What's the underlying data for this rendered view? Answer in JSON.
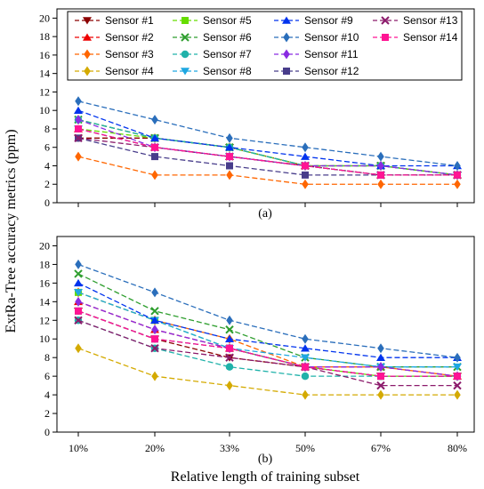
{
  "figure": {
    "ylabel": "ExtRa-Tree accuracy metrics (ppm)",
    "xlabel": "Relative length of training subset",
    "categories": [
      "10%",
      "20%",
      "33%",
      "50%",
      "67%",
      "80%"
    ]
  },
  "chart_data": [
    {
      "type": "line",
      "panel": "(a)",
      "categories": [
        "10%",
        "20%",
        "33%",
        "50%",
        "67%",
        "80%"
      ],
      "ylim": [
        0,
        21
      ],
      "yticks": [
        0,
        2,
        4,
        6,
        8,
        10,
        12,
        14,
        16,
        18,
        20
      ],
      "grid": false,
      "legend": "top",
      "series": [
        {
          "name": "Sensor #1",
          "color": "#8b0000",
          "marker": "tri-down",
          "values": [
            7,
            7,
            6,
            4,
            4,
            3
          ]
        },
        {
          "name": "Sensor #2",
          "color": "#ee0000",
          "marker": "tri-up",
          "values": [
            8,
            6,
            5,
            4,
            3,
            3
          ]
        },
        {
          "name": "Sensor #3",
          "color": "#ff6600",
          "marker": "diamond",
          "values": [
            5,
            3,
            3,
            2,
            2,
            2
          ]
        },
        {
          "name": "Sensor #4",
          "color": "#d4aa00",
          "marker": "diamond",
          "values": [
            9,
            7,
            6,
            4,
            4,
            3
          ]
        },
        {
          "name": "Sensor #5",
          "color": "#66dd00",
          "marker": "square",
          "values": [
            8,
            7,
            6,
            4,
            4,
            3
          ]
        },
        {
          "name": "Sensor #6",
          "color": "#2e9e2e",
          "marker": "x",
          "values": [
            9,
            7,
            6,
            4,
            4,
            3
          ]
        },
        {
          "name": "Sensor #7",
          "color": "#20b2aa",
          "marker": "circle",
          "values": [
            9,
            7,
            6,
            4,
            4,
            3
          ]
        },
        {
          "name": "Sensor #8",
          "color": "#1ea7e1",
          "marker": "tri-down",
          "values": [
            8,
            6,
            5,
            4,
            3,
            3
          ]
        },
        {
          "name": "Sensor #9",
          "color": "#0033ee",
          "marker": "tri-up",
          "values": [
            10,
            7,
            6,
            5,
            4,
            4
          ]
        },
        {
          "name": "Sensor #10",
          "color": "#2a6ebb",
          "marker": "diamond",
          "values": [
            11,
            9,
            7,
            6,
            5,
            4
          ]
        },
        {
          "name": "Sensor #11",
          "color": "#8a2be2",
          "marker": "diamond",
          "values": [
            9,
            6,
            5,
            4,
            4,
            3
          ]
        },
        {
          "name": "Sensor #12",
          "color": "#483d8b",
          "marker": "square",
          "values": [
            7,
            5,
            4,
            3,
            3,
            3
          ]
        },
        {
          "name": "Sensor #13",
          "color": "#8b1a6b",
          "marker": "x",
          "values": [
            7,
            6,
            5,
            4,
            3,
            3
          ]
        },
        {
          "name": "Sensor #14",
          "color": "#ff1493",
          "marker": "square",
          "values": [
            8,
            6,
            5,
            4,
            3,
            3
          ]
        }
      ]
    },
    {
      "type": "line",
      "panel": "(b)",
      "categories": [
        "10%",
        "20%",
        "33%",
        "50%",
        "67%",
        "80%"
      ],
      "ylim": [
        0,
        21
      ],
      "yticks": [
        0,
        2,
        4,
        6,
        8,
        10,
        12,
        14,
        16,
        18,
        20
      ],
      "grid": false,
      "series": [
        {
          "name": "Sensor #1",
          "color": "#8b0000",
          "marker": "tri-down",
          "values": [
            13,
            10,
            8,
            7,
            6,
            6
          ]
        },
        {
          "name": "Sensor #2",
          "color": "#ee0000",
          "marker": "tri-up",
          "values": [
            14,
            11,
            9,
            7,
            7,
            6
          ]
        },
        {
          "name": "Sensor #3",
          "color": "#ff6600",
          "marker": "diamond",
          "values": [
            15,
            12,
            10,
            7,
            7,
            6
          ]
        },
        {
          "name": "Sensor #4",
          "color": "#d4aa00",
          "marker": "diamond",
          "values": [
            9,
            6,
            5,
            4,
            4,
            4
          ]
        },
        {
          "name": "Sensor #5",
          "color": "#66dd00",
          "marker": "square",
          "values": [
            15,
            12,
            9,
            7,
            6,
            6
          ]
        },
        {
          "name": "Sensor #6",
          "color": "#2e9e2e",
          "marker": "x",
          "values": [
            17,
            13,
            11,
            8,
            7,
            7
          ]
        },
        {
          "name": "Sensor #7",
          "color": "#20b2aa",
          "marker": "circle",
          "values": [
            12,
            9,
            7,
            6,
            6,
            6
          ]
        },
        {
          "name": "Sensor #8",
          "color": "#1ea7e1",
          "marker": "tri-down",
          "values": [
            15,
            12,
            9,
            8,
            7,
            7
          ]
        },
        {
          "name": "Sensor #9",
          "color": "#0033ee",
          "marker": "tri-up",
          "values": [
            16,
            12,
            10,
            9,
            8,
            8
          ]
        },
        {
          "name": "Sensor #10",
          "color": "#2a6ebb",
          "marker": "diamond",
          "values": [
            18,
            15,
            12,
            10,
            9,
            8
          ]
        },
        {
          "name": "Sensor #11",
          "color": "#8a2be2",
          "marker": "diamond",
          "values": [
            14,
            11,
            9,
            7,
            7,
            6
          ]
        },
        {
          "name": "Sensor #12",
          "color": "#483d8b",
          "marker": "square",
          "values": [
            13,
            10,
            9,
            7,
            6,
            6
          ]
        },
        {
          "name": "Sensor #13",
          "color": "#8b1a6b",
          "marker": "x",
          "values": [
            12,
            9,
            8,
            7,
            5,
            5
          ]
        },
        {
          "name": "Sensor #14",
          "color": "#ff1493",
          "marker": "square",
          "values": [
            13,
            10,
            9,
            7,
            6,
            6
          ]
        }
      ]
    }
  ]
}
